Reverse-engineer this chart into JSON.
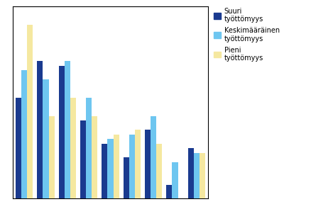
{
  "legend_labels": [
    "Suuri\ntyöttömyys",
    "Keskimääräinen\ntyöttömyys",
    "Pieni\ntyöttömyys"
  ],
  "colors": [
    "#1a3a8f",
    "#6ec6f0",
    "#f5e8a0"
  ],
  "groups": 9,
  "series": [
    [
      22,
      30,
      29,
      17,
      12,
      9,
      15,
      3,
      11
    ],
    [
      28,
      26,
      30,
      22,
      13,
      14,
      18,
      8,
      10
    ],
    [
      38,
      18,
      22,
      18,
      14,
      15,
      12,
      0,
      10
    ]
  ],
  "ylim": [
    0,
    42
  ],
  "bar_width": 0.27,
  "background_color": "#ffffff",
  "grid_color": "#bbbbbb",
  "legend_fontsize": 7.0,
  "border_color": "#000000"
}
